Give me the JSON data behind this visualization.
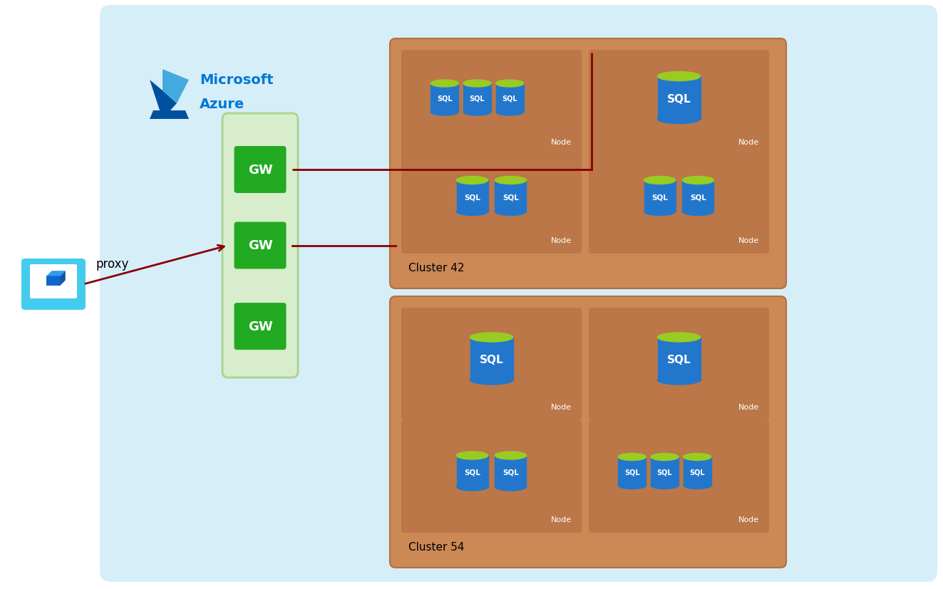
{
  "bg_outer": "#ffffff",
  "bg_azure": "#d6eef8",
  "cluster_fill": "#cc8855",
  "cluster_edge": "#b07040",
  "node_fill": "#bb7748",
  "node_edge": "#aa6638",
  "gw_container_fill": "#d8edcc",
  "gw_container_edge": "#aad488",
  "gw_fill": "#22aa22",
  "gw_text": "#ffffff",
  "sql_body": "#2277cc",
  "sql_cap": "#99cc22",
  "sql_text": "#ffffff",
  "arrow_color": "#880000",
  "proxy_color": "#111111",
  "monitor_outer": "#44ccee",
  "monitor_screen_bg": "#ffffff",
  "monitor_cube": "#1166cc",
  "azure_blue": "#0078d4",
  "azure_logo_dark": "#0050a0",
  "azure_logo_light": "#44aadd",
  "cluster42_label": "Cluster 42",
  "cluster54_label": "Cluster 54",
  "gw_label": "GW",
  "proxy_label": "proxy",
  "node_label": "Node",
  "ms_line1": "Microsoft",
  "ms_line2": "Azure",
  "figw": 13.23,
  "figh": 8.28,
  "dpi": 100
}
